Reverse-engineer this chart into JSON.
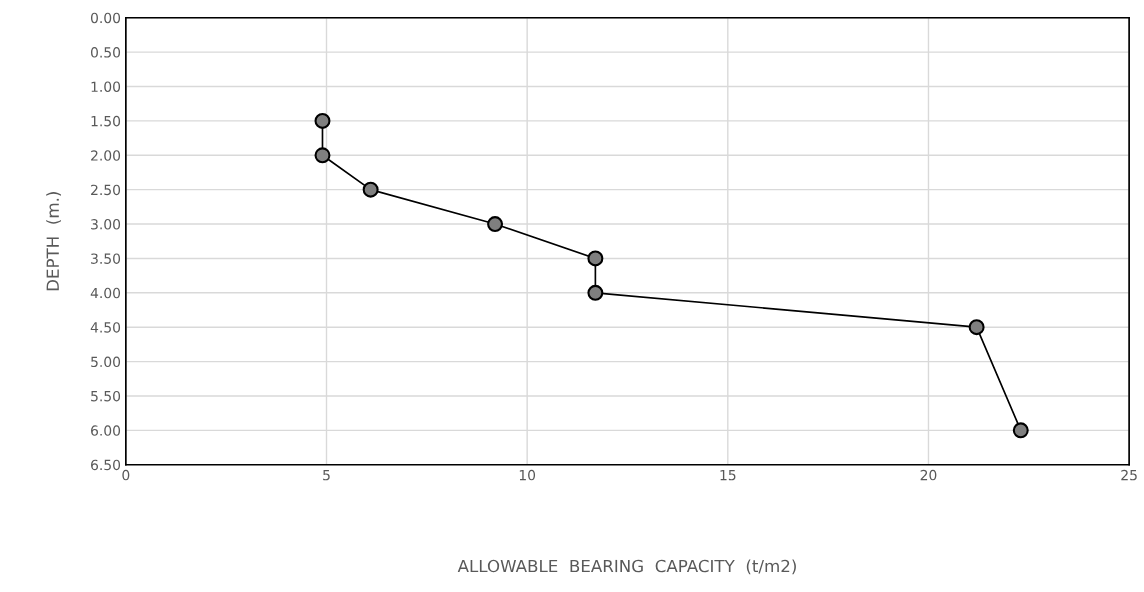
{
  "chart_data": {
    "type": "line",
    "xlabel": "ALLOWABLE  BEARING  CAPACITY  (t/m2)",
    "ylabel": "DEPTH  (m.)",
    "x": [
      4.9,
      4.9,
      6.1,
      9.2,
      11.7,
      11.7,
      21.2,
      22.3
    ],
    "series": [
      {
        "color": "#000000",
        "values": [
          1.5,
          2.0,
          2.5,
          3.0,
          3.5,
          4.0,
          4.5,
          6.0
        ]
      }
    ],
    "marker": "circle",
    "line_style": "solid",
    "grid": true,
    "xlim": [
      0,
      25
    ],
    "xticks": [
      0,
      5,
      10,
      15,
      20,
      25
    ],
    "ylim": [
      6.5,
      0
    ],
    "yticks": [
      {
        "value": 0,
        "label": "0.00"
      },
      {
        "value": 0.5,
        "label": "0.50"
      },
      {
        "value": 1,
        "label": "1.00"
      },
      {
        "value": 1.5,
        "label": "1.50"
      },
      {
        "value": 2,
        "label": "2.00"
      },
      {
        "value": 2.5,
        "label": "2.50"
      },
      {
        "value": 3,
        "label": "3.00"
      },
      {
        "value": 3.5,
        "label": "3.50"
      },
      {
        "value": 4,
        "label": "4.00"
      },
      {
        "value": 4.5,
        "label": "4.50"
      },
      {
        "value": 5,
        "label": "5.00"
      },
      {
        "value": 5.5,
        "label": "5.50"
      },
      {
        "value": 6,
        "label": "6.00"
      },
      {
        "value": 6.5,
        "label": "6.50"
      }
    ]
  }
}
